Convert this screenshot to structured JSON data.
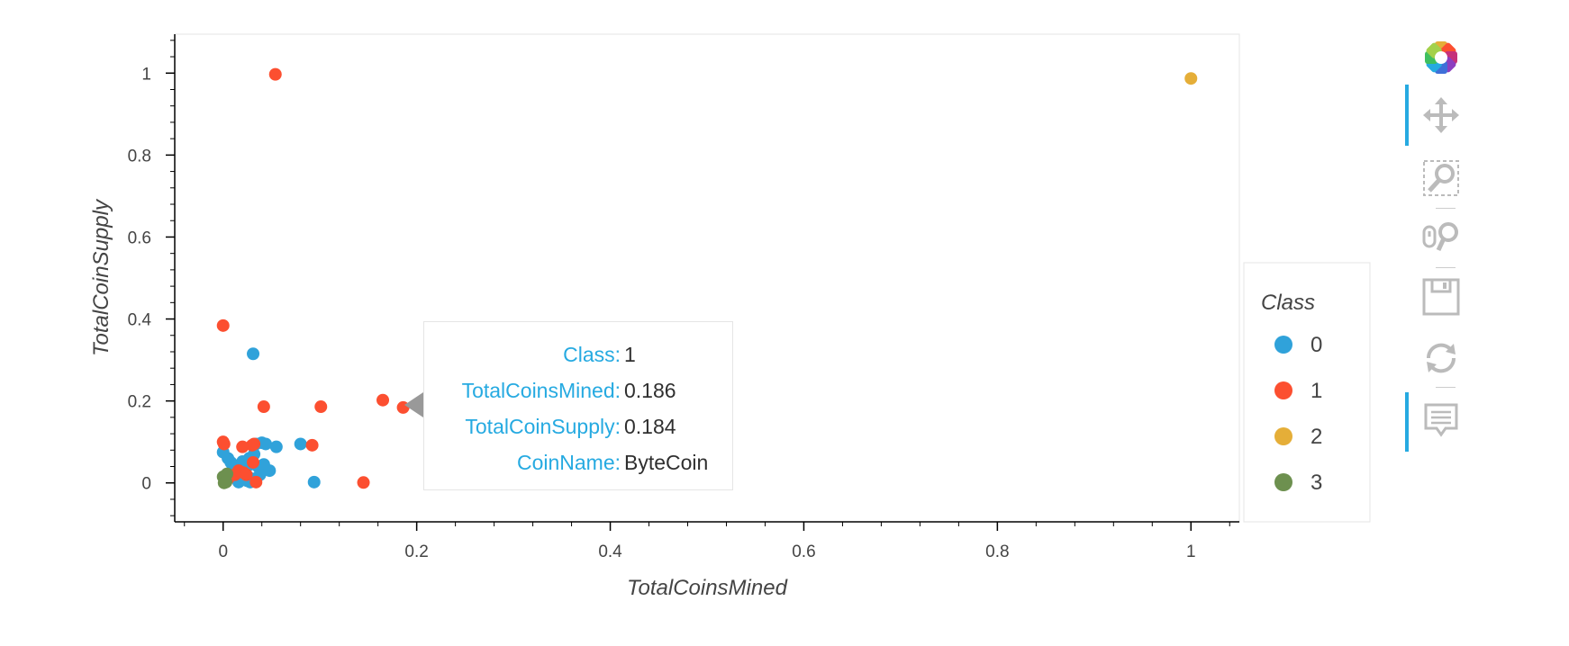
{
  "chart_data": {
    "type": "scatter",
    "xlabel": "TotalCoinsMined",
    "ylabel": "TotalCoinSupply",
    "xlim": [
      -0.05,
      1.05
    ],
    "ylim": [
      -0.095,
      1.095
    ],
    "x_ticks": [
      0,
      0.2,
      0.4,
      0.6,
      0.8,
      1
    ],
    "x_tick_labels": [
      "0",
      "0.2",
      "0.4",
      "0.6",
      "0.8",
      "1"
    ],
    "y_ticks": [
      0,
      0.2,
      0.4,
      0.6,
      0.8,
      1
    ],
    "y_tick_labels": [
      "0",
      "0.2",
      "0.4",
      "0.6",
      "0.8",
      "1"
    ],
    "grid": false,
    "legend": {
      "title": "Class",
      "placement": "right",
      "entries": [
        {
          "label": "0",
          "color": "#30a2da"
        },
        {
          "label": "1",
          "color": "#fc4f30"
        },
        {
          "label": "2",
          "color": "#e5ae38"
        },
        {
          "label": "3",
          "color": "#6d904f"
        }
      ]
    },
    "series": [
      {
        "name": "0",
        "color": "#30a2da",
        "points": [
          [
            0.0,
            0.075
          ],
          [
            0.005,
            0.06
          ],
          [
            0.008,
            0.05
          ],
          [
            0.01,
            0.04
          ],
          [
            0.012,
            0.025
          ],
          [
            0.014,
            0.01
          ],
          [
            0.016,
            0.002
          ],
          [
            0.018,
            0.03
          ],
          [
            0.02,
            0.052
          ],
          [
            0.022,
            0.035
          ],
          [
            0.024,
            0.02
          ],
          [
            0.025,
            0.005
          ],
          [
            0.027,
            0.06
          ],
          [
            0.028,
            0.045
          ],
          [
            0.03,
            0.01
          ],
          [
            0.032,
            0.07
          ],
          [
            0.034,
            0.095
          ],
          [
            0.036,
            0.04
          ],
          [
            0.038,
            0.02
          ],
          [
            0.04,
            0.098
          ],
          [
            0.042,
            0.045
          ],
          [
            0.044,
            0.095
          ],
          [
            0.048,
            0.03
          ],
          [
            0.055,
            0.088
          ],
          [
            0.08,
            0.095
          ],
          [
            0.031,
            0.315
          ],
          [
            0.094,
            0.002
          ],
          [
            0.015,
            0.015
          ],
          [
            0.006,
            0.02
          ],
          [
            0.028,
            0.002
          ]
        ]
      },
      {
        "name": "1",
        "color": "#fc4f30",
        "points": [
          [
            0.054,
            0.997
          ],
          [
            0.0,
            0.384
          ],
          [
            0.0,
            0.1
          ],
          [
            0.001,
            0.095
          ],
          [
            0.02,
            0.088
          ],
          [
            0.03,
            0.092
          ],
          [
            0.032,
            0.095
          ],
          [
            0.031,
            0.05
          ],
          [
            0.021,
            0.025
          ],
          [
            0.012,
            0.02
          ],
          [
            0.016,
            0.03
          ],
          [
            0.024,
            0.02
          ],
          [
            0.034,
            0.002
          ],
          [
            0.042,
            0.186
          ],
          [
            0.101,
            0.186
          ],
          [
            0.092,
            0.092
          ],
          [
            0.145,
            0.001
          ],
          [
            0.165,
            0.202
          ],
          [
            0.186,
            0.184
          ],
          [
            0.005,
            0.01
          ]
        ]
      },
      {
        "name": "2",
        "color": "#e5ae38",
        "points": [
          [
            1.0,
            0.987
          ]
        ]
      },
      {
        "name": "3",
        "color": "#6d904f",
        "points": [
          [
            0.0,
            0.015
          ],
          [
            0.002,
            0.005
          ],
          [
            0.001,
            0.0
          ],
          [
            0.004,
            0.022
          ],
          [
            0.003,
            0.002
          ]
        ]
      }
    ]
  },
  "tooltip": {
    "rows": [
      {
        "key": "Class:",
        "value": "1"
      },
      {
        "key": "TotalCoinsMined:",
        "value": "0.186"
      },
      {
        "key": "TotalCoinSupply:",
        "value": "0.184"
      },
      {
        "key": "CoinName:",
        "value": "ByteCoin"
      }
    ]
  },
  "toolbar": {
    "tools": [
      {
        "icon": "bokeh-logo-icon",
        "active": false
      },
      {
        "icon": "pan-icon",
        "active": true
      },
      {
        "icon": "box-zoom-icon",
        "active": false
      },
      {
        "icon": "wheel-zoom-icon",
        "active": false
      },
      {
        "icon": "save-icon",
        "active": false
      },
      {
        "icon": "reset-icon",
        "active": false
      },
      {
        "icon": "hover-icon",
        "active": true
      }
    ]
  }
}
